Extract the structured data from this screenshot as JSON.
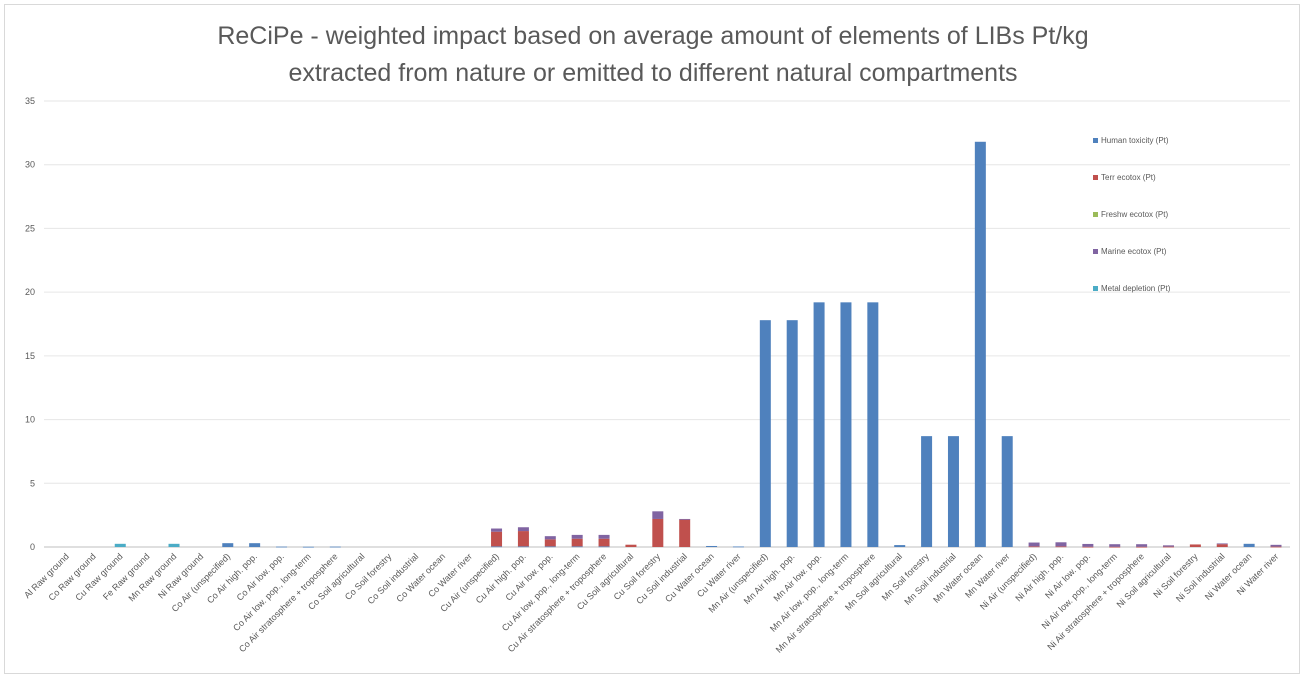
{
  "chart_data": {
    "type": "bar",
    "stacked": true,
    "title_line1": "ReCiPe - weighted impact based on average amount of elements of LIBs Pt/kg",
    "title_line2": "extracted from nature or emitted to different natural compartments",
    "xlabel": "",
    "ylabel": "",
    "ylim": [
      0,
      35
    ],
    "y_ticks": [
      "0",
      "5",
      "10",
      "15",
      "20",
      "25",
      "30",
      "35"
    ],
    "grid": true,
    "legend_position": "right",
    "categories": [
      "Al Raw ground",
      "Co Raw ground",
      "Cu Raw ground",
      "Fe Raw ground",
      "Mn Raw ground",
      "Ni Raw ground",
      "Co Air (unspecified)",
      "Co Air high. pop.",
      "Co Air low. pop.",
      "Co Air low. pop., long-term",
      "Co Air stratosphere + troposphere",
      "Co Soil agricultural",
      "Co Soil forestry",
      "Co Soil industrial",
      "Co Water ocean",
      "Co Water river",
      "Cu Air (unspecified)",
      "Cu Air high. pop.",
      "Cu Air low. pop.",
      "Cu Air low. pop., long-term",
      "Cu Air stratosphere + troposphere",
      "Cu Soil agricultural",
      "Cu Soil forestry",
      "Cu Soil industrial",
      "Cu Water ocean",
      "Cu Water river",
      "Mn Air (unspecified)",
      "Mn Air high. pop.",
      "Mn Air low. pop.",
      "Mn Air low. pop., long-term",
      "Mn Air stratosphere + troposphere",
      "Mn Soil agricultural",
      "Mn Soil forestry",
      "Mn Soil industrial",
      "Mn Water ocean",
      "Mn Water river",
      "Ni Air (unspecified)",
      "Ni Air high. pop.",
      "Ni Air low. pop.",
      "Ni Air low. pop., long-term",
      "Ni Air stratosphere + troposphere",
      "Ni Soil agricultural",
      "Ni Soil forestry",
      "Ni Soil industrial",
      "Ni Water ocean",
      "Ni Water river"
    ],
    "series": [
      {
        "name": "Human toxicity (Pt)",
        "color": "#4f81bd",
        "values": [
          0,
          0,
          0,
          0,
          0,
          0,
          0.3,
          0.3,
          0.03,
          0.02,
          0.03,
          0,
          0,
          0,
          0,
          0,
          0.05,
          0.05,
          0.05,
          0.05,
          0.05,
          0,
          0,
          0,
          0.08,
          0.04,
          17.8,
          17.8,
          19.2,
          19.2,
          19.2,
          0.15,
          8.7,
          8.7,
          31.8,
          8.7,
          0,
          0,
          0,
          0,
          0,
          0,
          0,
          0,
          0.25,
          0
        ]
      },
      {
        "name": "Terr ecotox (Pt)",
        "color": "#c0504d",
        "values": [
          0,
          0,
          0,
          0,
          0,
          0,
          0,
          0,
          0,
          0,
          0,
          0,
          0,
          0,
          0,
          0,
          1.15,
          1.2,
          0.55,
          0.6,
          0.6,
          0.18,
          2.2,
          2.15,
          0,
          0,
          0,
          0,
          0,
          0,
          0,
          0,
          0,
          0,
          0,
          0,
          0.05,
          0.05,
          0.02,
          0.02,
          0.02,
          0.03,
          0.2,
          0.22,
          0,
          0.03
        ]
      },
      {
        "name": "Freshw ecotox (Pt)",
        "color": "#9bbb59",
        "values": [
          0,
          0,
          0,
          0,
          0,
          0,
          0,
          0,
          0,
          0,
          0,
          0,
          0,
          0,
          0,
          0,
          0,
          0,
          0,
          0,
          0,
          0,
          0,
          0,
          0,
          0,
          0,
          0,
          0,
          0,
          0,
          0,
          0,
          0,
          0,
          0,
          0,
          0,
          0,
          0,
          0,
          0,
          0,
          0,
          0,
          0
        ]
      },
      {
        "name": "Marine ecotox (Pt)",
        "color": "#8064a2",
        "values": [
          0,
          0,
          0,
          0,
          0,
          0,
          0,
          0,
          0,
          0,
          0,
          0,
          0,
          0,
          0,
          0,
          0.25,
          0.3,
          0.25,
          0.3,
          0.3,
          0,
          0.6,
          0.05,
          0,
          0,
          0,
          0,
          0,
          0,
          0,
          0,
          0,
          0,
          0,
          0,
          0.3,
          0.32,
          0.22,
          0.2,
          0.2,
          0.1,
          0,
          0.06,
          0,
          0.14
        ]
      },
      {
        "name": "Metal depletion (Pt)",
        "color": "#4bacc6",
        "values": [
          0,
          0,
          0.25,
          0,
          0.25,
          0,
          0,
          0,
          0,
          0,
          0,
          0,
          0,
          0,
          0,
          0,
          0,
          0,
          0,
          0,
          0,
          0,
          0,
          0,
          0,
          0,
          0,
          0,
          0,
          0,
          0,
          0,
          0,
          0,
          0,
          0,
          0,
          0,
          0,
          0,
          0,
          0,
          0,
          0,
          0,
          0
        ]
      }
    ]
  }
}
